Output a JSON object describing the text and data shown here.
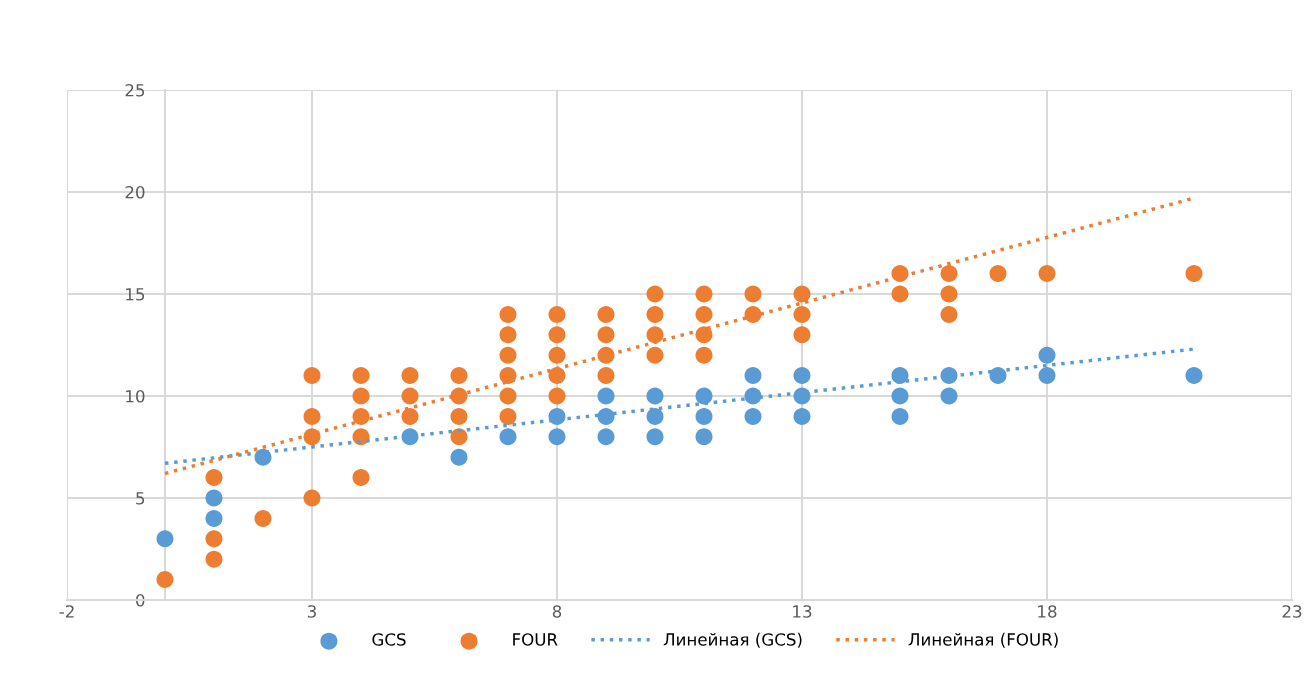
{
  "chart_data": {
    "type": "scatter",
    "xlim": [
      -2,
      23
    ],
    "xticks": [
      -2,
      3,
      8,
      13,
      18,
      23
    ],
    "ylim": [
      0,
      25
    ],
    "yticks": [
      0,
      5,
      10,
      15,
      20,
      25
    ],
    "grid": true,
    "legend": "bottom",
    "marker": "circle",
    "series": [
      {
        "name": "GCS",
        "color": "#5b9bd5",
        "x": [
          0,
          1,
          1,
          2,
          5,
          6,
          7,
          8,
          8,
          9,
          9,
          9,
          10,
          10,
          10,
          11,
          11,
          11,
          12,
          12,
          12,
          13,
          13,
          13,
          15,
          15,
          15,
          16,
          16,
          17,
          18,
          18,
          21
        ],
        "values": [
          3,
          5,
          4,
          7,
          8,
          7,
          8,
          9,
          8,
          10,
          9,
          8,
          10,
          9,
          8,
          10,
          9,
          8,
          11,
          10,
          9,
          11,
          10,
          9,
          11,
          10,
          9,
          11,
          10,
          11,
          12,
          11,
          11
        ]
      },
      {
        "name": "FOUR",
        "color": "#ed7d31",
        "x": [
          0,
          1,
          1,
          1,
          2,
          3,
          3,
          3,
          3,
          4,
          4,
          4,
          4,
          4,
          5,
          5,
          5,
          6,
          6,
          6,
          6,
          7,
          7,
          7,
          7,
          7,
          7,
          8,
          8,
          8,
          8,
          8,
          9,
          9,
          9,
          9,
          10,
          10,
          10,
          10,
          11,
          11,
          11,
          11,
          12,
          12,
          13,
          13,
          13,
          15,
          15,
          16,
          16,
          16,
          17,
          18,
          21
        ],
        "values": [
          1,
          6,
          3,
          2,
          4,
          11,
          9,
          8,
          5,
          11,
          10,
          9,
          8,
          6,
          11,
          10,
          9,
          11,
          10,
          9,
          8,
          14,
          13,
          12,
          11,
          10,
          9,
          14,
          13,
          12,
          11,
          10,
          14,
          13,
          12,
          11,
          15,
          14,
          13,
          12,
          15,
          14,
          13,
          12,
          15,
          14,
          15,
          14,
          13,
          16,
          15,
          16,
          15,
          14,
          16,
          16,
          16
        ]
      },
      {
        "name": "Линейная (GCS)",
        "type": "line",
        "line_style": "dotted",
        "marker": "none",
        "color": "#5b9bd5",
        "x": [
          0,
          21
        ],
        "values": [
          6.7,
          12.3
        ]
      },
      {
        "name": "Линейная (FOUR)",
        "type": "line",
        "line_style": "dotted",
        "marker": "none",
        "color": "#ed7d31",
        "x": [
          0,
          21
        ],
        "values": [
          6.2,
          19.7
        ]
      }
    ]
  }
}
